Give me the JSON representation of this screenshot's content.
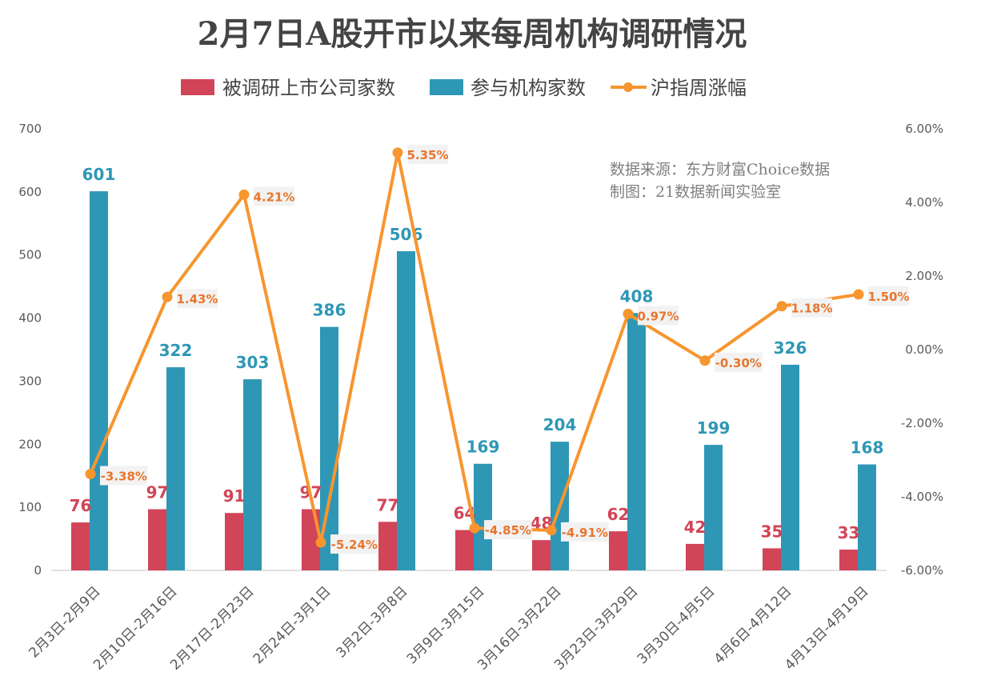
{
  "chart_data": {
    "type": "bar",
    "title": "2月7日A股开市以来每周机构调研情况",
    "categories": [
      "2月3日-2月9日",
      "2月10日-2月16日",
      "2月17日-2月23日",
      "2月24日-3月1日",
      "3月2日-3月8日",
      "3月9日-3月15日",
      "3月16日-3月22日",
      "3月23日-3月29日",
      "3月30日-4月5日",
      "4月6日-4月12日",
      "4月13日-4月19日"
    ],
    "series": [
      {
        "name": "被调研上市公司家数",
        "type": "bar",
        "axis": "left",
        "color": "#d24457",
        "values": [
          76,
          97,
          91,
          97,
          77,
          64,
          48,
          62,
          42,
          35,
          33
        ]
      },
      {
        "name": "参与机构家数",
        "type": "bar",
        "axis": "left",
        "color": "#2e97b5",
        "values": [
          601,
          322,
          303,
          386,
          506,
          169,
          204,
          408,
          199,
          326,
          168
        ]
      },
      {
        "name": "沪指周涨幅",
        "type": "line",
        "axis": "right",
        "color": "#f7952f",
        "values": [
          -3.38,
          1.43,
          4.21,
          -5.24,
          5.35,
          -4.85,
          -4.91,
          0.97,
          -0.3,
          1.18,
          1.5
        ],
        "labels": [
          "-3.38%",
          "1.43%",
          "4.21%",
          "-5.24%",
          "5.35%",
          "-4.85%",
          "-4.91%",
          "0.97%",
          "-0.30%",
          "1.18%",
          "1.50%"
        ]
      }
    ],
    "y_left": {
      "range": [
        0,
        700
      ],
      "ticks": [
        "0",
        "100",
        "200",
        "300",
        "400",
        "500",
        "600",
        "700"
      ]
    },
    "y_right": {
      "range": [
        -6,
        6
      ],
      "ticks": [
        "-6.00%",
        "-4.00%",
        "-2.00%",
        "0.00%",
        "2.00%",
        "4.00%",
        "6.00%"
      ]
    },
    "legend_position": "top-center",
    "grid": false,
    "annotation": [
      "数据来源：东方财富Choice数据",
      "制图：21数据新闻实验室"
    ]
  }
}
